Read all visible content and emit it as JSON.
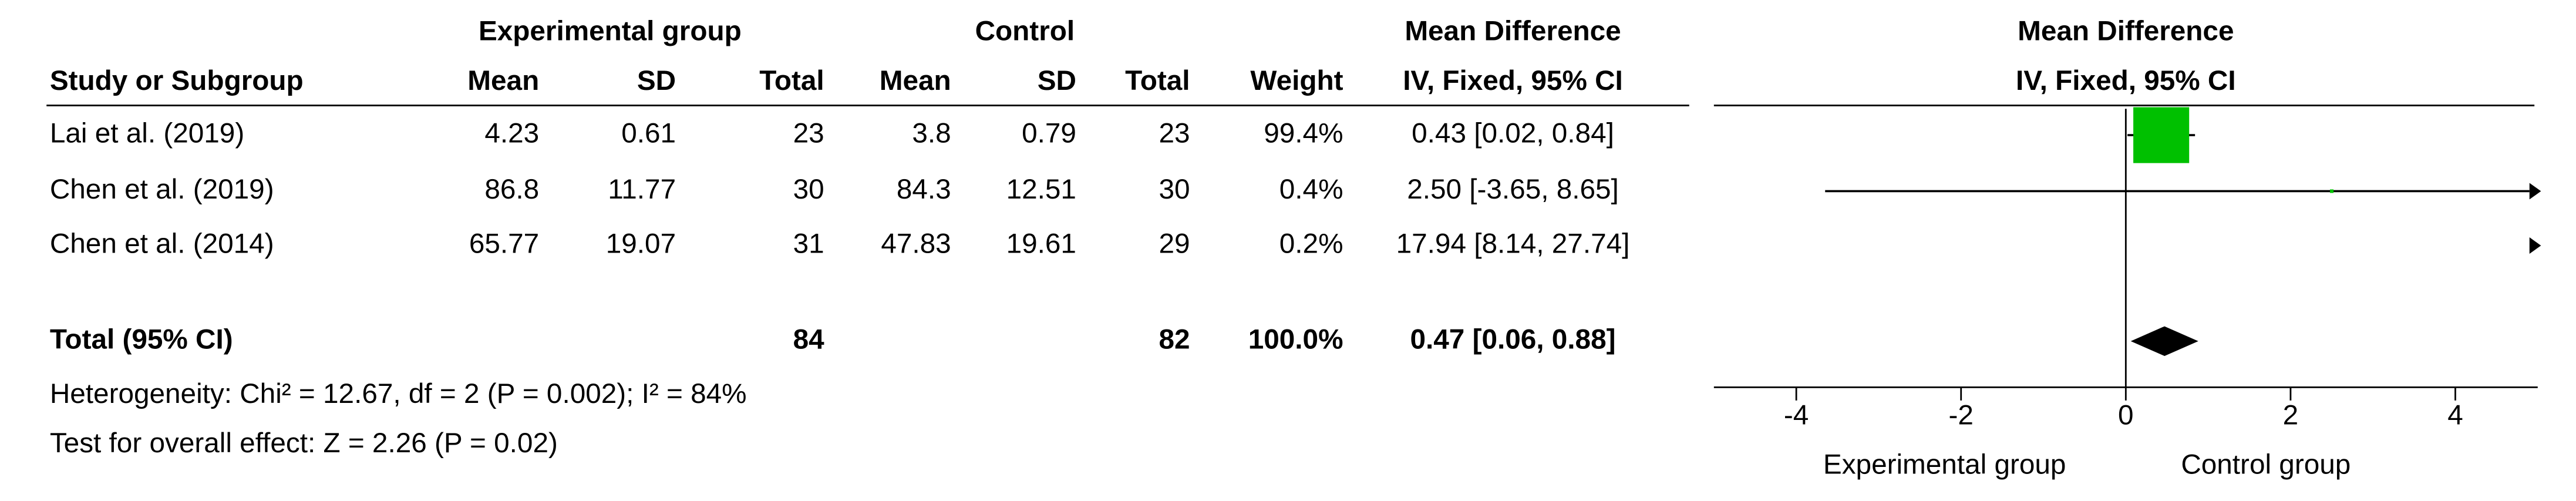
{
  "chart_data": {
    "type": "forest",
    "group_headers": [
      "Experimental group",
      "Control",
      "Mean Difference",
      "Mean Difference"
    ],
    "columns": [
      "Study or Subgroup",
      "Mean",
      "SD",
      "Total",
      "Mean",
      "SD",
      "Total",
      "Weight",
      "IV, Fixed, 95% CI",
      "IV, Fixed, 95% CI"
    ],
    "studies": [
      {
        "name": "Lai et al. (2019)",
        "exp_mean": 4.23,
        "exp_sd": 0.61,
        "exp_total": 23,
        "ctrl_mean": 3.8,
        "ctrl_sd": 0.79,
        "ctrl_total": 23,
        "weight": 99.4,
        "weight_label": "99.4%",
        "md": 0.43,
        "ci_low": 0.02,
        "ci_high": 0.84,
        "ci_label": "0.43 [0.02, 0.84]"
      },
      {
        "name": "Chen et al. (2019)",
        "exp_mean": 86.8,
        "exp_sd": 11.77,
        "exp_total": 30,
        "ctrl_mean": 84.3,
        "ctrl_sd": 12.51,
        "ctrl_total": 30,
        "weight": 0.4,
        "weight_label": "0.4%",
        "md": 2.5,
        "ci_low": -3.65,
        "ci_high": 8.65,
        "ci_label": "2.50 [-3.65, 8.65]"
      },
      {
        "name": "Chen et al. (2014)",
        "exp_mean": 65.77,
        "exp_sd": 19.07,
        "exp_total": 31,
        "ctrl_mean": 47.83,
        "ctrl_sd": 19.61,
        "ctrl_total": 29,
        "weight": 0.2,
        "weight_label": "0.2%",
        "md": 17.94,
        "ci_low": 8.14,
        "ci_high": 27.74,
        "ci_label": "17.94 [8.14, 27.74]"
      }
    ],
    "total": {
      "name": "Total (95% CI)",
      "exp_total": 84,
      "ctrl_total": 82,
      "weight": 100,
      "weight_label": "100.0%",
      "md": 0.47,
      "ci_low": 0.06,
      "ci_high": 0.88,
      "ci_label": "0.47 [0.06, 0.88]"
    },
    "heterogeneity": "Heterogeneity: Chi² = 12.67, df = 2 (P = 0.002); I² = 84%",
    "overall_effect": "Test for overall effect: Z = 2.26 (P = 0.02)",
    "xlim": [
      -5,
      5
    ],
    "xticks": [
      -4,
      -2,
      0,
      2,
      4
    ],
    "x_labels": [
      "Experimental group",
      "Control group"
    ],
    "color": "#00c000"
  }
}
